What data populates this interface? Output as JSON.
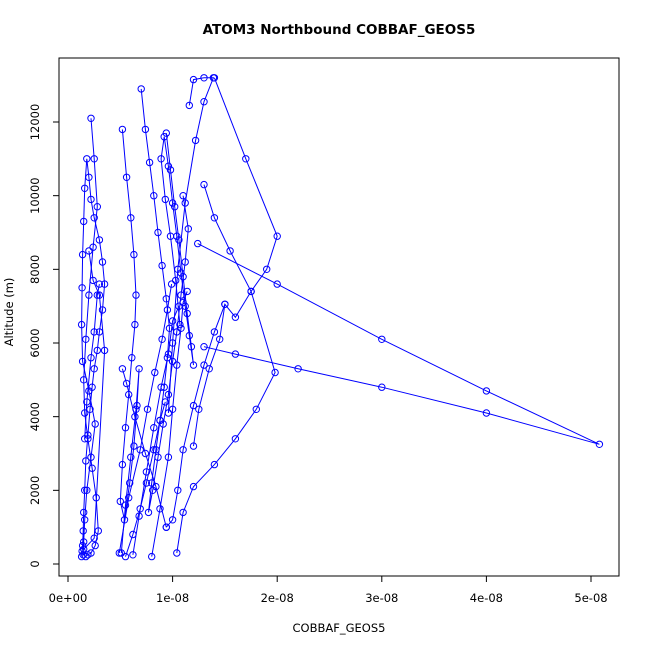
{
  "chart_data": {
    "type": "line",
    "title": "ATOM3 Northbound COBBAF_GEOS5",
    "xlabel": "COBBAF_GEOS5",
    "ylabel": "Altitude (m)",
    "xlim": [
      0,
      5.1e-08
    ],
    "ylim": [
      0,
      13200
    ],
    "x_ticks": [
      0,
      1e-08,
      2e-08,
      3e-08,
      4e-08,
      5e-08
    ],
    "x_tick_labels": [
      "0e+00",
      "1e-08",
      "2e-08",
      "3e-08",
      "4e-08",
      "5e-08"
    ],
    "y_ticks": [
      0,
      2000,
      4000,
      6000,
      8000,
      10000,
      12000
    ],
    "y_tick_labels": [
      "0",
      "2000",
      "4000",
      "6000",
      "8000",
      "10000",
      "12000"
    ],
    "grid": false,
    "legend": "none",
    "colors": {
      "series": "#0000ff",
      "axis": "#000000"
    },
    "series": [
      {
        "x": [
          1.3e-09,
          1.35e-09,
          1.4e-09,
          1.45e-09,
          1.5e-09,
          1.6e-09,
          1.7e-09,
          1.9e-09,
          2.1e-09,
          2.3e-09,
          2.5e-09,
          2.8e-09,
          3e-09,
          3.3e-09,
          3.5e-09,
          3.3e-09,
          3e-09,
          2.5e-09,
          2.2e-09,
          2e-09,
          1.8e-09,
          1.6e-09,
          1.5e-09,
          1.4e-09,
          1.35e-09,
          1.3e-09,
          1.4e-09,
          2e-09,
          2.6e-09,
          2.2e-09,
          1.8e-09,
          1.6e-09,
          1.5e-09,
          1.45e-09
        ],
        "y": [
          200,
          350,
          500,
          900,
          1400,
          2000,
          2800,
          3500,
          4200,
          4800,
          5300,
          5800,
          6300,
          6900,
          7600,
          8200,
          8800,
          9400,
          9900,
          10500,
          11000,
          10200,
          9300,
          8400,
          7500,
          6500,
          5500,
          4700,
          3800,
          2900,
          2000,
          1200,
          600,
          250
        ]
      },
      {
        "x": [
          2.2e-09,
          2.5e-09,
          2.8e-09,
          2.4e-09,
          2e-09,
          1.7e-09,
          1.5e-09,
          1.6e-09,
          1.9e-09,
          2.3e-09,
          2.7e-09,
          2.9e-09,
          2.6e-09,
          2.2e-09,
          1.9e-09,
          1.7e-09
        ],
        "y": [
          12100,
          11000,
          9700,
          8600,
          7300,
          6100,
          5000,
          4100,
          3400,
          2600,
          1800,
          900,
          500,
          300,
          250,
          200
        ]
      },
      {
        "x": [
          5.2e-09,
          5.6e-09,
          6e-09,
          6.3e-09,
          6.5e-09,
          6.4e-09,
          6.1e-09,
          5.8e-09,
          5.5e-09,
          5.2e-09,
          5e-09,
          5.4e-09,
          5.9e-09,
          6.3e-09,
          6.6e-09,
          6.8e-09,
          6.5e-09,
          6e-09,
          5.5e-09,
          5.1e-09
        ],
        "y": [
          11800,
          10500,
          9400,
          8400,
          7300,
          6500,
          5600,
          4600,
          3700,
          2700,
          1700,
          1200,
          2200,
          3200,
          4300,
          5300,
          4200,
          2900,
          1600,
          300
        ]
      },
      {
        "x": [
          7e-09,
          7.4e-09,
          7.8e-09,
          8.2e-09,
          8.6e-09,
          9e-09,
          9.4e-09,
          9.7e-09,
          9.5e-09,
          9.2e-09,
          8.8e-09,
          8.4e-09,
          8e-09,
          7.7e-09,
          8.1e-09,
          8.6e-09,
          9.1e-09,
          9.6e-09,
          1e-08,
          1.04e-08,
          1.08e-08,
          1.12e-08,
          1.15e-08,
          1.1e-08
        ],
        "y": [
          12900,
          11800,
          10900,
          10000,
          9000,
          8100,
          7200,
          6400,
          5600,
          4800,
          3900,
          3100,
          2200,
          1400,
          2000,
          2900,
          3800,
          4600,
          5500,
          6300,
          7300,
          8200,
          9100,
          10000
        ]
      },
      {
        "x": [
          9.4e-09,
          9.8e-09,
          1.02e-08,
          1.06e-08,
          1.1e-08,
          1.14e-08,
          1.18e-08,
          1.2e-08,
          1.16e-08,
          1.12e-08,
          1.08e-08,
          1.04e-08,
          1e-08,
          9.6e-09,
          9.2e-09,
          8.9e-09,
          9.3e-09,
          9.8e-09,
          1.03e-08,
          1.07e-08
        ],
        "y": [
          11700,
          10700,
          9700,
          8800,
          7800,
          6800,
          5900,
          5400,
          6200,
          7000,
          7900,
          8900,
          9800,
          10800,
          11600,
          11000,
          9900,
          8900,
          7700,
          6500
        ]
      },
      {
        "x": [
          1.16e-08,
          1.2e-08,
          1.3e-08,
          1.39e-08,
          1.3e-08,
          1.22e-08,
          1.12e-08,
          1.05e-08,
          1e-08,
          9.6e-09
        ],
        "y": [
          12450,
          13150,
          13200,
          13200,
          12550,
          11500,
          9800,
          8000,
          6000,
          4100
        ]
      },
      {
        "x": [
          1.4e-08,
          1.7e-08,
          2e-08,
          1.9e-08,
          1.75e-08,
          1.6e-08,
          1.5e-08,
          1.45e-08,
          1.35e-08,
          1.25e-08,
          1.2e-08
        ],
        "y": [
          13200,
          11000,
          8900,
          8000,
          7400,
          6700,
          7050,
          6100,
          5300,
          4200,
          3200
        ]
      },
      {
        "x": [
          1.3e-08,
          1.4e-08,
          1.55e-08,
          1.75e-08,
          1.98e-08,
          1.8e-08,
          1.6e-08,
          1.4e-08,
          1.2e-08,
          1.1e-08,
          1.04e-08
        ],
        "y": [
          10300,
          9400,
          8500,
          7400,
          5200,
          4200,
          3400,
          2700,
          2100,
          1400,
          300
        ]
      },
      {
        "x": [
          1.24e-08,
          2e-08,
          3e-08,
          4e-08,
          5.08e-08,
          4e-08,
          3e-08,
          2.2e-08,
          1.6e-08,
          1.3e-08
        ],
        "y": [
          8700,
          7600,
          6100,
          4700,
          3250,
          4100,
          4800,
          5300,
          5700,
          5900
        ]
      },
      {
        "x": [
          1.5e-08,
          1.4e-08,
          1.3e-08,
          1.2e-08,
          1.1e-08,
          1.05e-08,
          1e-08,
          9.4e-09
        ],
        "y": [
          7050,
          6300,
          5400,
          4300,
          3100,
          2000,
          1200,
          1000
        ]
      },
      {
        "x": [
          9.4e-09,
          8.4e-09,
          7.4e-09,
          6.4e-09,
          5.6e-09,
          5.2e-09
        ],
        "y": [
          1000,
          2100,
          3000,
          4000,
          4900,
          5300
        ]
      },
      {
        "x": [
          8e-09,
          8.8e-09,
          9.6e-09,
          1e-08,
          1.04e-08,
          1.08e-08,
          1.1e-08,
          1.14e-08
        ],
        "y": [
          200,
          1500,
          2900,
          4200,
          5400,
          6400,
          7100,
          7400
        ]
      },
      {
        "x": [
          6.2e-09,
          6.8e-09,
          7.5e-09,
          8.2e-09,
          8.9e-09,
          9.6e-09,
          1e-08,
          1.06e-08
        ],
        "y": [
          250,
          1300,
          2500,
          3700,
          4800,
          5700,
          6600,
          7000
        ]
      },
      {
        "x": [
          4.9e-09,
          5.8e-09,
          6.9e-09,
          7.6e-09,
          8.3e-09,
          9e-09,
          9.5e-09,
          9.9e-09
        ],
        "y": [
          300,
          1800,
          3100,
          4200,
          5200,
          6100,
          6900,
          7600
        ]
      },
      {
        "x": [
          1.5e-09,
          2.5e-09,
          3.5e-09,
          3e-09,
          2.4e-09,
          2e-09
        ],
        "y": [
          400,
          700,
          5800,
          7300,
          7700,
          8500
        ]
      },
      {
        "x": [
          1.6e-09,
          1.8e-09,
          2.2e-09,
          2.5e-09,
          2.8e-09,
          3e-09
        ],
        "y": [
          3400,
          4400,
          5600,
          6300,
          7300,
          7600
        ]
      },
      {
        "x": [
          5.5e-09,
          6.2e-09,
          6.9e-09,
          7.5e-09,
          8.2e-09,
          8.8e-09,
          9.3e-09
        ],
        "y": [
          200,
          800,
          1500,
          2200,
          3100,
          3900,
          4400
        ]
      }
    ]
  }
}
